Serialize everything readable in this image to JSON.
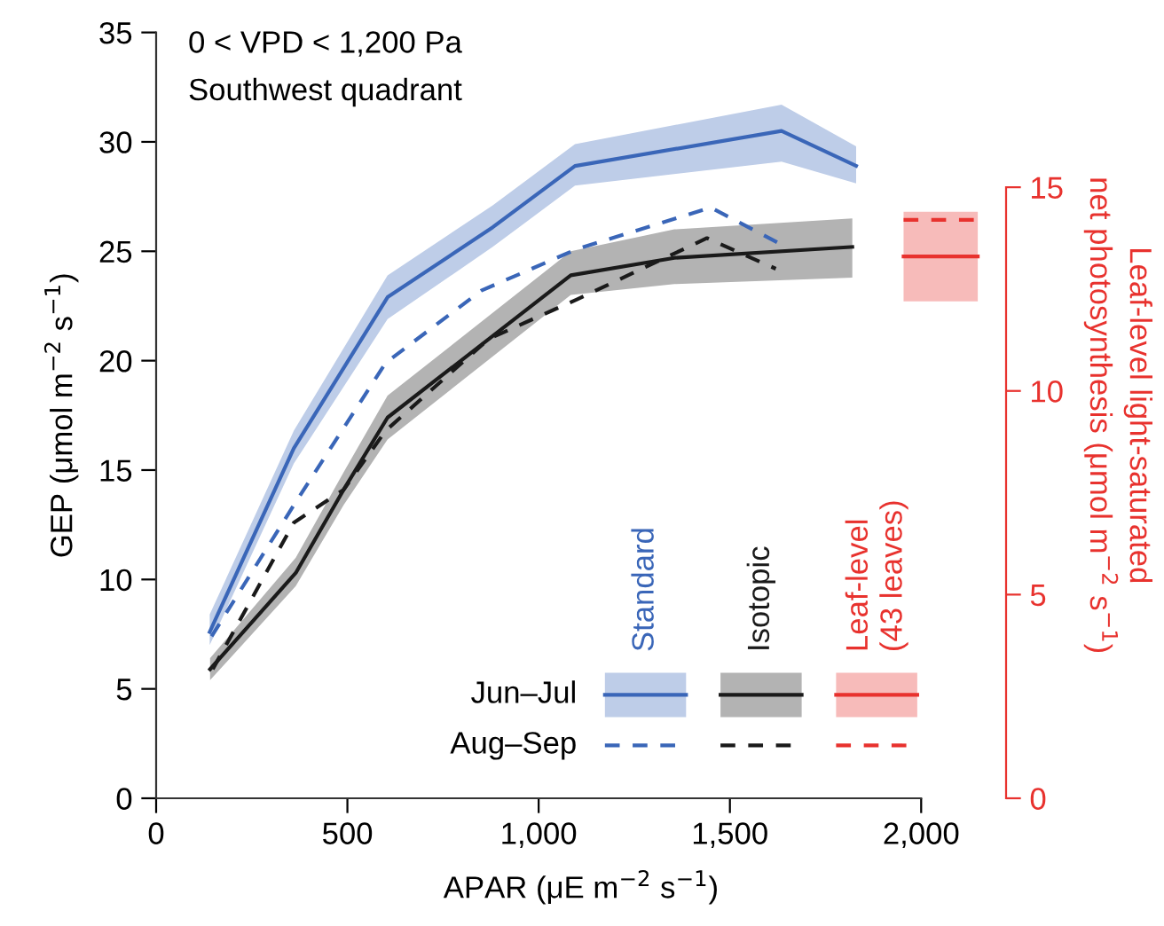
{
  "chart_data": {
    "type": "line",
    "xlabel": "APAR (μE m$^{−2}$ s$^{−1}$)",
    "ylabel": "GEP (μmol m$^{−2}$ s$^{−1}$)",
    "y2label": "Leaf-level light-saturated\nnet photosynthesis (μmol m$^{−2}$ s$^{−1}$)",
    "annotations": [
      "0 < VPD < 1,200 Pa",
      "Southwest quadrant",
      "Standard",
      "Isotopic",
      "Leaf-level\n(43 leaves)",
      "Jun–Jul",
      "Aug–Sep"
    ],
    "series": [
      {
        "color": "#3a66b8",
        "line_style": "solid",
        "x": [
          140,
          360,
          605,
          880,
          1095,
          1635,
          1830
        ],
        "values": [
          7.6,
          16.0,
          22.9,
          26.1,
          28.9,
          30.5,
          28.9
        ],
        "lower": [
          7.0,
          15.3,
          21.9,
          25.2,
          28.0,
          29.1,
          28.1
        ],
        "upper": [
          8.4,
          16.8,
          23.9,
          27.1,
          29.9,
          31.7,
          29.8
        ]
      },
      {
        "color": "#3a66b8",
        "line_style": "dashed",
        "x": [
          145,
          360,
          600,
          850,
          1100,
          1450,
          1625
        ],
        "values": [
          7.4,
          13.4,
          19.9,
          23.2,
          25.1,
          27.0,
          25.4
        ]
      },
      {
        "color": "#1a1a1a",
        "line_style": "solid",
        "x": [
          141,
          365,
          490,
          605,
          1084,
          1355,
          1820
        ],
        "values": [
          5.9,
          10.3,
          14.1,
          17.4,
          23.9,
          24.7,
          25.2
        ],
        "lower": [
          5.4,
          9.7,
          13.4,
          16.4,
          23.0,
          23.5,
          23.8
        ],
        "upper": [
          6.4,
          11.0,
          14.9,
          18.4,
          25.0,
          26.0,
          26.5
        ]
      },
      {
        "color": "#1a1a1a",
        "line_style": "dashed",
        "x": [
          148,
          360,
          490,
          600,
          870,
          1100,
          1440,
          1620
        ],
        "values": [
          5.9,
          12.6,
          14.1,
          16.8,
          21.0,
          22.8,
          25.6,
          24.2
        ]
      },
      {
        "color": "#e8322e",
        "line_style": "solid",
        "axis": "y2",
        "x": [
          1954,
          2148
        ],
        "values": [
          13.3,
          13.3
        ],
        "lower": [
          12.2,
          12.2
        ],
        "upper": [
          14.4,
          14.4
        ]
      },
      {
        "color": "#e8322e",
        "line_style": "dashed",
        "axis": "y2",
        "x": [
          1954,
          2148
        ],
        "values": [
          14.2,
          14.2
        ]
      }
    ],
    "xlim": [
      0,
      2222
    ],
    "xticks": [
      0,
      500,
      {
        "value": 1000,
        "label": "1,000"
      },
      {
        "value": 1500,
        "label": "1,500"
      },
      {
        "value": 2000,
        "label": "2,000"
      }
    ],
    "ylim": [
      0,
      35
    ],
    "yticks": [
      0,
      5,
      10,
      15,
      20,
      25,
      30,
      35
    ],
    "y2lim": [
      0,
      18.8
    ],
    "y2ticks": [
      0,
      5,
      10,
      15
    ],
    "grid": false,
    "marker": "none"
  }
}
